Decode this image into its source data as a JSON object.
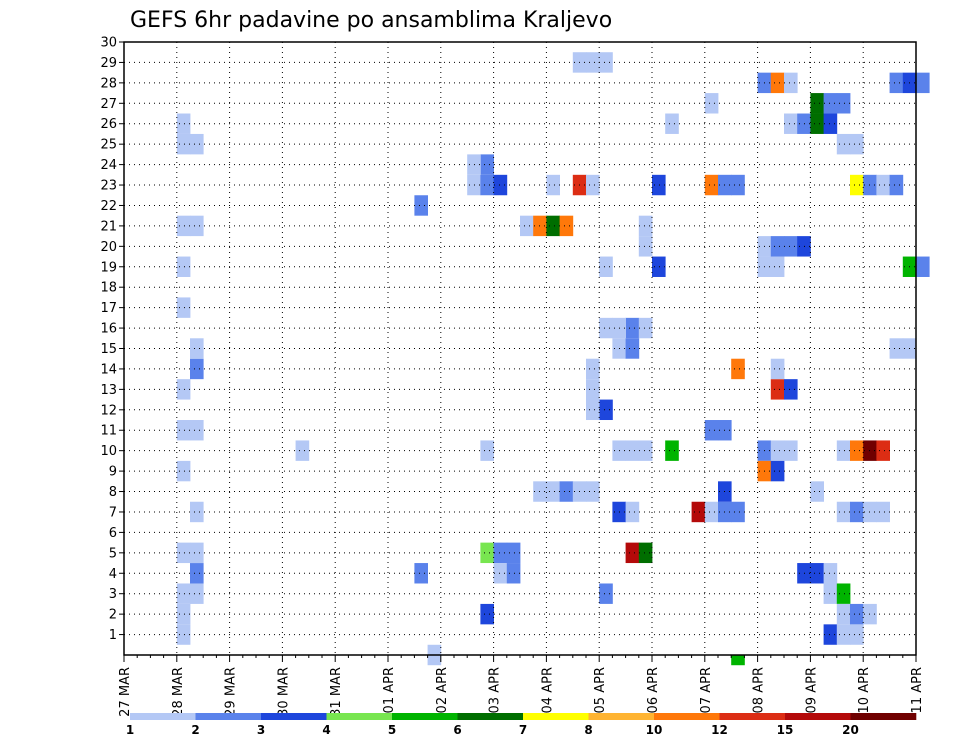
{
  "chart_data": {
    "type": "heatmap",
    "title": "GEFS 6hr padavine po ansamblima Kraljevo",
    "y_ticks": [
      "1",
      "2",
      "3",
      "4",
      "5",
      "6",
      "7",
      "8",
      "9",
      "10",
      "11",
      "12",
      "13",
      "14",
      "15",
      "16",
      "17",
      "18",
      "19",
      "20",
      "21",
      "22",
      "23",
      "24",
      "25",
      "26",
      "27",
      "28",
      "29",
      "30"
    ],
    "x_ticks": [
      "27 MAR",
      "28 MAR",
      "29 MAR",
      "30 MAR",
      "31 MAR",
      "01 APR",
      "02 APR",
      "03 APR",
      "04 APR",
      "05 APR",
      "06 APR",
      "07 APR",
      "08 APR",
      "09 APR",
      "10 APR",
      "11 APR"
    ],
    "x_unit": "6-hour step from 27 MAR 00 UTC",
    "x_range": [
      0,
      60
    ],
    "y_range": [
      0,
      30
    ],
    "grid": true,
    "legend": {
      "position": "bottom",
      "labels": [
        "1",
        "2",
        "3",
        "4",
        "5",
        "6",
        "7",
        "8",
        "10",
        "12",
        "15",
        "20"
      ],
      "colors": [
        "#b4c8f5",
        "#5a82eb",
        "#1e46dc",
        "#78e650",
        "#00b400",
        "#006e00",
        "#ffff00",
        "#ffb432",
        "#ff780a",
        "#dc2d14",
        "#b40a0a",
        "#700000"
      ]
    },
    "cells": [
      [
        4,
        1,
        0
      ],
      [
        4,
        2,
        0
      ],
      [
        4,
        3,
        0
      ],
      [
        5,
        3,
        0
      ],
      [
        5,
        4,
        1
      ],
      [
        5,
        5,
        0
      ],
      [
        4,
        5,
        0
      ],
      [
        5,
        7,
        0
      ],
      [
        4,
        9,
        0
      ],
      [
        4,
        11,
        0
      ],
      [
        5,
        11,
        0
      ],
      [
        4,
        13,
        0
      ],
      [
        5,
        14,
        1
      ],
      [
        5,
        15,
        0
      ],
      [
        4,
        17,
        0
      ],
      [
        4,
        19,
        0
      ],
      [
        4,
        21,
        0
      ],
      [
        5,
        21,
        0
      ],
      [
        4,
        25,
        0
      ],
      [
        5,
        25,
        0
      ],
      [
        4,
        26,
        0
      ],
      [
        23,
        0,
        0
      ],
      [
        22,
        4,
        1
      ],
      [
        22,
        22,
        1
      ],
      [
        13,
        10,
        0
      ],
      [
        27,
        2,
        2
      ],
      [
        27,
        5,
        3
      ],
      [
        28,
        5,
        1
      ],
      [
        29,
        5,
        1
      ],
      [
        27,
        10,
        0
      ],
      [
        26,
        23,
        0
      ],
      [
        27,
        23,
        1
      ],
      [
        28,
        23,
        2
      ],
      [
        27,
        24,
        1
      ],
      [
        26,
        24,
        0
      ],
      [
        28,
        4,
        0
      ],
      [
        29,
        4,
        1
      ],
      [
        30,
        21,
        0
      ],
      [
        31,
        21,
        8
      ],
      [
        32,
        21,
        5
      ],
      [
        33,
        21,
        8
      ],
      [
        31,
        8,
        0
      ],
      [
        32,
        8,
        0
      ],
      [
        33,
        8,
        1
      ],
      [
        34,
        8,
        0
      ],
      [
        35,
        8,
        0
      ],
      [
        32,
        23,
        0
      ],
      [
        34,
        23,
        9
      ],
      [
        35,
        23,
        0
      ],
      [
        35,
        12,
        0
      ],
      [
        36,
        12,
        2
      ],
      [
        35,
        13,
        0
      ],
      [
        35,
        14,
        0
      ],
      [
        35,
        12,
        0
      ],
      [
        36,
        3,
        1
      ],
      [
        37,
        7,
        2
      ],
      [
        36,
        19,
        0
      ],
      [
        34,
        29,
        0
      ],
      [
        35,
        29,
        0
      ],
      [
        36,
        29,
        0
      ],
      [
        37,
        10,
        0
      ],
      [
        38,
        10,
        0
      ],
      [
        39,
        10,
        0
      ],
      [
        37,
        15,
        0
      ],
      [
        38,
        15,
        1
      ],
      [
        38,
        16,
        1
      ],
      [
        37,
        16,
        0
      ],
      [
        39,
        16,
        0
      ],
      [
        36,
        16,
        0
      ],
      [
        38,
        5,
        10
      ],
      [
        39,
        5,
        5
      ],
      [
        38,
        7,
        0
      ],
      [
        39,
        20,
        0
      ],
      [
        39,
        21,
        0
      ],
      [
        40,
        23,
        2
      ],
      [
        40,
        19,
        2
      ],
      [
        41,
        10,
        4
      ],
      [
        41,
        26,
        0
      ],
      [
        43,
        7,
        10
      ],
      [
        44,
        7,
        0
      ],
      [
        45,
        7,
        1
      ],
      [
        46,
        7,
        1
      ],
      [
        45,
        8,
        2
      ],
      [
        44,
        11,
        1
      ],
      [
        45,
        11,
        1
      ],
      [
        44,
        23,
        8
      ],
      [
        45,
        23,
        1
      ],
      [
        46,
        23,
        1
      ],
      [
        44,
        27,
        0
      ],
      [
        46,
        14,
        8
      ],
      [
        46,
        -1,
        4
      ],
      [
        48,
        10,
        1
      ],
      [
        49,
        10,
        0
      ],
      [
        50,
        10,
        0
      ],
      [
        48,
        9,
        8
      ],
      [
        49,
        9,
        2
      ],
      [
        49,
        13,
        9
      ],
      [
        50,
        13,
        2
      ],
      [
        49,
        14,
        0
      ],
      [
        48,
        19,
        0
      ],
      [
        49,
        19,
        0
      ],
      [
        48,
        20,
        0
      ],
      [
        49,
        20,
        1
      ],
      [
        50,
        20,
        1
      ],
      [
        51,
        20,
        2
      ],
      [
        48,
        28,
        1
      ],
      [
        49,
        28,
        8
      ],
      [
        50,
        28,
        0
      ],
      [
        50,
        26,
        0
      ],
      [
        51,
        26,
        1
      ],
      [
        52,
        26,
        5
      ],
      [
        52,
        27,
        5
      ],
      [
        53,
        26,
        2
      ],
      [
        51,
        4,
        2
      ],
      [
        52,
        4,
        2
      ],
      [
        53,
        4,
        0
      ],
      [
        53,
        3,
        0
      ],
      [
        54,
        3,
        4
      ],
      [
        53,
        1,
        2
      ],
      [
        54,
        1,
        0
      ],
      [
        55,
        1,
        0
      ],
      [
        54,
        2,
        0
      ],
      [
        55,
        2,
        1
      ],
      [
        56,
        2,
        0
      ],
      [
        52,
        8,
        0
      ],
      [
        54,
        10,
        0
      ],
      [
        55,
        10,
        8
      ],
      [
        56,
        10,
        11
      ],
      [
        57,
        10,
        9
      ],
      [
        54,
        7,
        0
      ],
      [
        55,
        7,
        1
      ],
      [
        56,
        7,
        0
      ],
      [
        57,
        7,
        0
      ],
      [
        54,
        25,
        0
      ],
      [
        55,
        25,
        0
      ],
      [
        53,
        27,
        1
      ],
      [
        54,
        27,
        1
      ],
      [
        55,
        23,
        6
      ],
      [
        56,
        23,
        1
      ],
      [
        57,
        23,
        0
      ],
      [
        58,
        23,
        1
      ],
      [
        58,
        15,
        0
      ],
      [
        59,
        15,
        0
      ],
      [
        59,
        19,
        4
      ],
      [
        60,
        19,
        1
      ],
      [
        58,
        28,
        1
      ],
      [
        59,
        28,
        2
      ],
      [
        60,
        28,
        1
      ]
    ]
  }
}
